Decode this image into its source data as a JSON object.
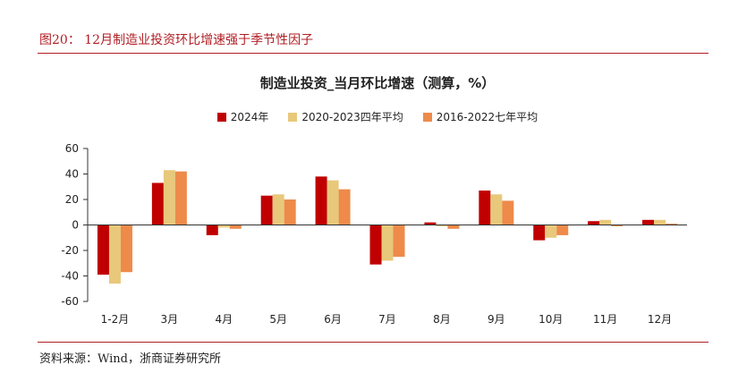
{
  "figure_title": "图20：  12月制造业投资环比增速强于季节性因子",
  "source_note": "资料来源：Wind，浙商证券研究所",
  "colors": {
    "accent": "#b01e24",
    "series": [
      "#c00000",
      "#e8c87a",
      "#ee8a4a"
    ]
  },
  "chart_data": {
    "type": "bar",
    "title": "制造业投资_当月环比增速（测算，%）",
    "categories": [
      "1-2月",
      "3月",
      "4月",
      "5月",
      "6月",
      "7月",
      "8月",
      "9月",
      "10月",
      "11月",
      "12月"
    ],
    "series": [
      {
        "name": "2024年",
        "values": [
          -39,
          33,
          -8,
          23,
          38,
          -31,
          2,
          27,
          -12,
          3,
          4
        ]
      },
      {
        "name": "2020-2023四年平均",
        "values": [
          -46,
          43,
          -2,
          24,
          35,
          -28,
          -1,
          24,
          -10,
          4,
          4
        ]
      },
      {
        "name": "2016-2022七年平均",
        "values": [
          -37,
          42,
          -3,
          20,
          28,
          -25,
          -3,
          19,
          -8,
          -1,
          1
        ]
      }
    ],
    "ylim": [
      -60,
      60
    ],
    "yticks": [
      60,
      40,
      20,
      0,
      -20,
      -40,
      -60
    ],
    "xlabel": "",
    "ylabel": "",
    "legend": "top-center",
    "grid": false
  }
}
